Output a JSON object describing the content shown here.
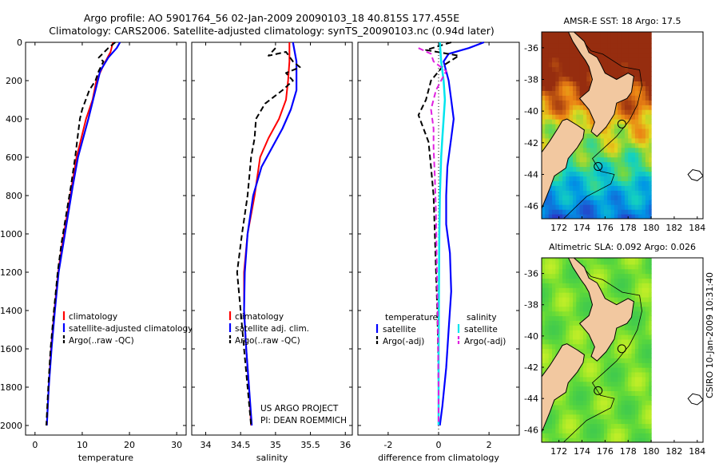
{
  "title": {
    "line1": "Argo profile: AO 5901764_56 02-Jan-2009 20090103_18 40.815S 177.455E",
    "line2": "Climatology: CARS2006. Satellite-adjusted climatology: synTS_20090103.nc (0.94d later)"
  },
  "side_label": "CSIRO 10-Jan-2009 10:31:40",
  "colors": {
    "climatology": "#ff0000",
    "satellite": "#0000ff",
    "argo": "#000000",
    "sat_sal_diff": "#00e5ee",
    "argo_sal_diff": "#e020e0",
    "land": "#f2c8a0"
  },
  "chart_data": [
    {
      "type": "line",
      "id": "temperature",
      "xlabel": "temperature",
      "ylabel": "",
      "xlim": [
        -2,
        32
      ],
      "ylim": [
        2050,
        0
      ],
      "xticks": [
        0,
        10,
        20,
        30
      ],
      "yticks": [
        0,
        200,
        400,
        600,
        800,
        1000,
        1200,
        1400,
        1600,
        1800,
        2000
      ],
      "legend": [
        "climatology",
        "satellite-adjusted climatology",
        "Argo(..raw -QC)"
      ],
      "series": [
        {
          "name": "climatology",
          "role": "clim",
          "points": [
            [
              16.5,
              0
            ],
            [
              16,
              50
            ],
            [
              14.5,
              120
            ],
            [
              13,
              200
            ],
            [
              12.2,
              300
            ],
            [
              10.8,
              400
            ],
            [
              9.8,
              500
            ],
            [
              8.8,
              600
            ],
            [
              7.8,
              750
            ],
            [
              6.8,
              900
            ],
            [
              5.8,
              1050
            ],
            [
              4.9,
              1200
            ],
            [
              4.1,
              1400
            ],
            [
              3.4,
              1600
            ],
            [
              2.9,
              1800
            ],
            [
              2.5,
              2000
            ]
          ]
        },
        {
          "name": "satellite-adjusted climatology",
          "role": "sat",
          "points": [
            [
              18,
              0
            ],
            [
              17.3,
              30
            ],
            [
              15.5,
              80
            ],
            [
              13.8,
              150
            ],
            [
              12.8,
              250
            ],
            [
              11.3,
              400
            ],
            [
              10.2,
              500
            ],
            [
              9.1,
              600
            ],
            [
              8,
              750
            ],
            [
              7,
              900
            ],
            [
              6,
              1050
            ],
            [
              5,
              1200
            ],
            [
              4.2,
              1400
            ],
            [
              3.5,
              1600
            ],
            [
              2.9,
              1800
            ],
            [
              2.5,
              2000
            ]
          ]
        },
        {
          "name": "Argo(..raw -QC)",
          "role": "argo",
          "points": [
            [
              17,
              0
            ],
            [
              15.5,
              30
            ],
            [
              13.5,
              80
            ],
            [
              14.5,
              100
            ],
            [
              13.5,
              150
            ],
            [
              12.8,
              200
            ],
            [
              11.5,
              250
            ],
            [
              10,
              350
            ],
            [
              9.5,
              400
            ],
            [
              9,
              500
            ],
            [
              8.5,
              600
            ],
            [
              7.6,
              750
            ],
            [
              6.6,
              900
            ],
            [
              5.6,
              1050
            ],
            [
              4.8,
              1200
            ],
            [
              4,
              1400
            ],
            [
              3.3,
              1600
            ],
            [
              2.8,
              1800
            ],
            [
              2.4,
              2000
            ]
          ]
        }
      ]
    },
    {
      "type": "line",
      "id": "salinity",
      "xlabel": "salinity",
      "xlim": [
        33.8,
        36.1
      ],
      "ylim": [
        2050,
        0
      ],
      "xticks": [
        34,
        34.5,
        35,
        35.5,
        36
      ],
      "yticks": [
        0,
        200,
        400,
        600,
        800,
        1000,
        1200,
        1400,
        1600,
        1800,
        2000
      ],
      "legend": [
        "climatology",
        "satellite adj. clim.",
        "Argo(..raw -QC)"
      ],
      "series": [
        {
          "name": "climatology",
          "role": "clim",
          "points": [
            [
              35.2,
              0
            ],
            [
              35.2,
              100
            ],
            [
              35.18,
              200
            ],
            [
              35.15,
              300
            ],
            [
              35.05,
              400
            ],
            [
              34.9,
              500
            ],
            [
              34.78,
              600
            ],
            [
              34.7,
              800
            ],
            [
              34.6,
              1000
            ],
            [
              34.55,
              1200
            ],
            [
              34.55,
              1400
            ],
            [
              34.58,
              1600
            ],
            [
              34.62,
              1800
            ],
            [
              34.65,
              2000
            ]
          ]
        },
        {
          "name": "satellite adj. clim.",
          "role": "sat",
          "points": [
            [
              35.25,
              0
            ],
            [
              35.3,
              100
            ],
            [
              35.3,
              250
            ],
            [
              35.22,
              350
            ],
            [
              35.1,
              450
            ],
            [
              34.95,
              550
            ],
            [
              34.8,
              650
            ],
            [
              34.68,
              800
            ],
            [
              34.6,
              1000
            ],
            [
              34.56,
              1200
            ],
            [
              34.55,
              1400
            ],
            [
              34.58,
              1600
            ],
            [
              34.62,
              1800
            ],
            [
              34.66,
              2000
            ]
          ]
        },
        {
          "name": "Argo(..raw -QC)",
          "role": "argo",
          "points": [
            [
              35,
              30
            ],
            [
              34.9,
              70
            ],
            [
              35.15,
              50
            ],
            [
              35.25,
              100
            ],
            [
              35.35,
              130
            ],
            [
              35.15,
              160
            ],
            [
              35.25,
              200
            ],
            [
              35.1,
              250
            ],
            [
              34.85,
              320
            ],
            [
              34.72,
              400
            ],
            [
              34.7,
              500
            ],
            [
              34.65,
              600
            ],
            [
              34.6,
              800
            ],
            [
              34.52,
              1000
            ],
            [
              34.45,
              1200
            ],
            [
              34.5,
              1400
            ],
            [
              34.55,
              1600
            ],
            [
              34.6,
              1800
            ],
            [
              34.65,
              2000
            ]
          ]
        }
      ]
    },
    {
      "type": "line",
      "id": "difference",
      "xlabel": "difference from climatology",
      "xlim": [
        -3.2,
        3.2
      ],
      "ylim": [
        2050,
        0
      ],
      "xticks": [
        -2,
        0,
        2
      ],
      "yticks": [
        0,
        200,
        400,
        600,
        800,
        1000,
        1200,
        1400,
        1600,
        1800,
        2000
      ],
      "legend_titles": [
        "temperature",
        "salinity"
      ],
      "legend": [
        "satellite",
        "Argo(-adj)",
        "satellite",
        "Argo(-adj)"
      ],
      "series": [
        {
          "name": "temperature satellite",
          "role": "sat",
          "points": [
            [
              1.8,
              0
            ],
            [
              1.2,
              30
            ],
            [
              0.4,
              60
            ],
            [
              0.2,
              100
            ],
            [
              0.4,
              200
            ],
            [
              0.5,
              300
            ],
            [
              0.6,
              400
            ],
            [
              0.5,
              500
            ],
            [
              0.35,
              650
            ],
            [
              0.3,
              800
            ],
            [
              0.3,
              950
            ],
            [
              0.45,
              1100
            ],
            [
              0.5,
              1300
            ],
            [
              0.4,
              1500
            ],
            [
              0.3,
              1700
            ],
            [
              0.15,
              1900
            ],
            [
              0.05,
              2000
            ]
          ]
        },
        {
          "name": "temperature Argo(-adj)",
          "role": "argo",
          "points": [
            [
              0.5,
              0
            ],
            [
              -0.5,
              40
            ],
            [
              0.8,
              70
            ],
            [
              0.2,
              120
            ],
            [
              -0.3,
              200
            ],
            [
              -0.5,
              300
            ],
            [
              -0.8,
              380
            ],
            [
              -0.6,
              450
            ],
            [
              -0.4,
              520
            ],
            [
              -0.3,
              650
            ],
            [
              -0.2,
              800
            ],
            [
              -0.15,
              1000
            ],
            [
              -0.1,
              1200
            ],
            [
              -0.05,
              1400
            ],
            [
              -0.02,
              1600
            ],
            [
              0,
              1800
            ],
            [
              0,
              2000
            ]
          ]
        },
        {
          "name": "salinity satellite",
          "role": "satsal",
          "points": [
            [
              0.05,
              0
            ],
            [
              0.1,
              100
            ],
            [
              0.2,
              200
            ],
            [
              0.25,
              300
            ],
            [
              0.2,
              400
            ],
            [
              0.15,
              500
            ],
            [
              0.1,
              600
            ],
            [
              0.05,
              800
            ],
            [
              0.03,
              1000
            ],
            [
              0.02,
              1200
            ],
            [
              0.01,
              1400
            ],
            [
              0,
              1600
            ],
            [
              0,
              2000
            ]
          ]
        },
        {
          "name": "salinity Argo(-adj)",
          "role": "argosal",
          "points": [
            [
              -0.8,
              30
            ],
            [
              -0.3,
              60
            ],
            [
              -0.2,
              100
            ],
            [
              0.3,
              150
            ],
            [
              -0.1,
              250
            ],
            [
              -0.3,
              350
            ],
            [
              -0.2,
              450
            ],
            [
              -0.2,
              550
            ],
            [
              -0.15,
              700
            ],
            [
              -0.1,
              900
            ],
            [
              -0.08,
              1100
            ],
            [
              -0.05,
              1300
            ],
            [
              -0.03,
              1500
            ],
            [
              0,
              1800
            ],
            [
              0,
              2000
            ]
          ]
        }
      ]
    },
    {
      "type": "heatmap",
      "id": "sst_map",
      "title": "AMSR-E SST: 18  Argo: 17.5",
      "xlim": [
        170.5,
        184.5
      ],
      "ylim": [
        -46.8,
        -35
      ],
      "xticks": [
        172,
        174,
        176,
        178,
        180,
        182,
        184
      ],
      "yticks": [
        -36,
        -38,
        -40,
        -42,
        -44,
        -46
      ],
      "profile_location": [
        177.455,
        -40.815
      ]
    },
    {
      "type": "heatmap",
      "id": "sla_map",
      "title": "Altimetric SLA: 0.092  Argo: 0.026",
      "xlim": [
        170.5,
        184.5
      ],
      "ylim": [
        -46.8,
        -35
      ],
      "xticks": [
        172,
        174,
        176,
        178,
        180,
        182,
        184
      ],
      "yticks": [
        -36,
        -38,
        -40,
        -42,
        -44,
        -46
      ],
      "profile_location": [
        177.455,
        -40.815
      ]
    }
  ],
  "footer": {
    "line1": "US ARGO PROJECT",
    "line2": "PI: DEAN ROEMMICH"
  }
}
